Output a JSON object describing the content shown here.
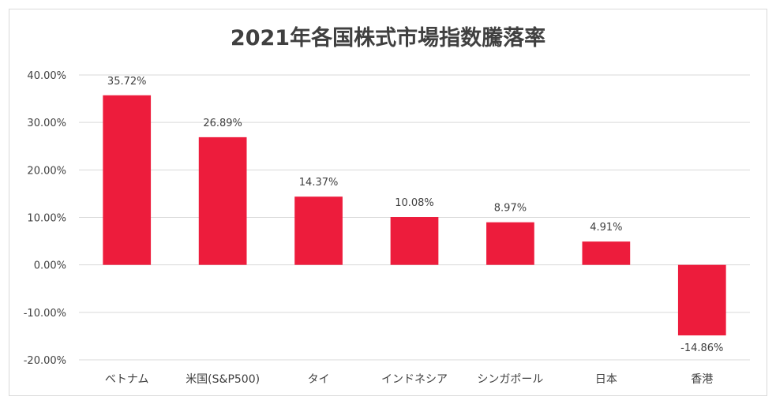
{
  "chart_data": {
    "type": "bar",
    "title": "2021年各国株式市場指数騰落率",
    "categories": [
      "ベトナム",
      "米国(S&P500)",
      "タイ",
      "インドネシア",
      "シンガポール",
      "日本",
      "香港"
    ],
    "values": [
      35.72,
      26.89,
      14.37,
      10.08,
      8.97,
      4.91,
      -14.86
    ],
    "data_labels": [
      "35.72%",
      "26.89%",
      "14.37%",
      "10.08%",
      "8.97%",
      "4.91%",
      "-14.86%"
    ],
    "ylim": [
      -20,
      40
    ],
    "yticks": [
      40,
      30,
      20,
      10,
      0,
      -10,
      -20
    ],
    "ytick_labels": [
      "40.00%",
      "30.00%",
      "20.00%",
      "10.00%",
      "0.00%",
      "-10.00%",
      "-20.00%"
    ],
    "xlabel": "",
    "ylabel": "",
    "grid": true,
    "bar_color": "#ed1c3c",
    "grid_color": "#d9d9d9"
  }
}
